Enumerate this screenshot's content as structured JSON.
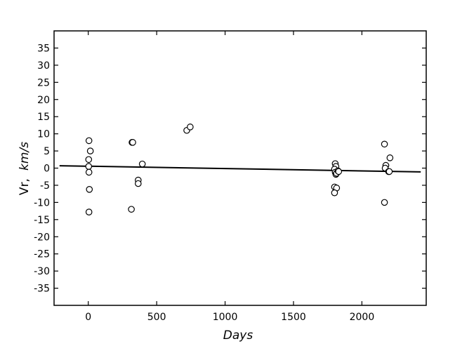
{
  "chart_data": {
    "type": "scatter",
    "xlabel": "Days",
    "ylabel_main": "Vr,",
    "ylabel_unit": "km/s",
    "xlim": [
      -250,
      2470
    ],
    "ylim": [
      -40,
      40
    ],
    "x_ticks": [
      0,
      500,
      1000,
      1500,
      2000
    ],
    "x_tick_labels": [
      "0",
      "500",
      "1000",
      "1500",
      "2000"
    ],
    "y_ticks": [
      35,
      30,
      25,
      20,
      15,
      10,
      5,
      0,
      -5,
      -10,
      -15,
      -20,
      -25,
      -30,
      -35
    ],
    "y_tick_labels": [
      "35",
      "30",
      "25",
      "20",
      "15",
      "10",
      "5",
      "0",
      "-5",
      "-10",
      "-15",
      "-20",
      "-25",
      "-30",
      "-35"
    ],
    "grid": false,
    "series": [
      {
        "type": "scatter",
        "marker": "open-circle",
        "x": [
          5,
          15,
          3,
          3,
          5,
          8,
          5,
          320,
          325,
          395,
          365,
          365,
          315,
          720,
          745,
          1805,
          1810,
          1800,
          1805,
          1810,
          1815,
          1825,
          1830,
          1800,
          1815,
          1800,
          2165,
          2175,
          2170,
          2195,
          2200,
          2205,
          2165
        ],
        "y": [
          8.0,
          5.0,
          2.5,
          0.5,
          -1.2,
          -6.2,
          -12.8,
          7.5,
          7.5,
          1.2,
          -3.5,
          -4.5,
          -12.0,
          11.0,
          12.0,
          1.3,
          0.5,
          -0.3,
          -1.2,
          -1.8,
          -1.5,
          -0.8,
          -1.0,
          -5.5,
          -5.8,
          -7.2,
          7.0,
          0.8,
          0.0,
          -1.0,
          -1.0,
          3.0,
          -10.0
        ]
      },
      {
        "type": "line",
        "x": [
          -210,
          2430
        ],
        "y": [
          0.7,
          -1.1
        ]
      }
    ]
  }
}
